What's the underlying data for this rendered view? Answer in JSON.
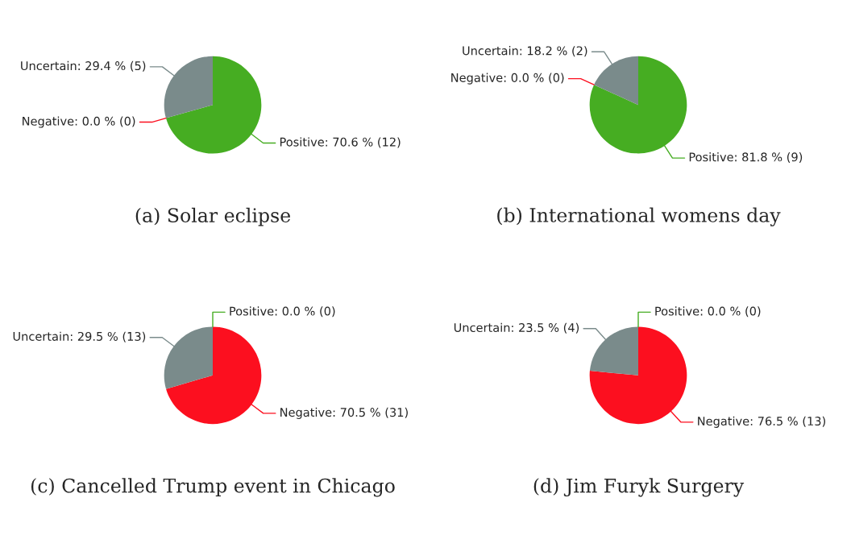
{
  "chart_data": [
    {
      "type": "pie",
      "title": "(a) Solar eclipse",
      "categories": [
        "Positive",
        "Negative",
        "Uncertain"
      ],
      "values": [
        70.6,
        0.0,
        29.4
      ],
      "value_labels": [
        "70.6 % (12)",
        "0.0 % (0)",
        "29.4 % (5)"
      ],
      "colors": [
        "#46ad22",
        "#fc0f1f",
        "#7a8b8b"
      ]
    },
    {
      "type": "pie",
      "title": "(b) International womens day",
      "categories": [
        "Positive",
        "Negative",
        "Uncertain"
      ],
      "values": [
        81.8,
        0.0,
        18.2
      ],
      "value_labels": [
        "81.8 % (9)",
        "0.0 % (0)",
        "18.2 % (2)"
      ],
      "colors": [
        "#46ad22",
        "#fc0f1f",
        "#7a8b8b"
      ]
    },
    {
      "type": "pie",
      "title": "(c) Cancelled Trump event in Chicago",
      "categories": [
        "Positive",
        "Negative",
        "Uncertain"
      ],
      "values": [
        0.0,
        70.5,
        29.5
      ],
      "value_labels": [
        "0.0 % (0)",
        "70.5 % (31)",
        "29.5 % (13)"
      ],
      "colors": [
        "#46ad22",
        "#fc0f1f",
        "#7a8b8b"
      ]
    },
    {
      "type": "pie",
      "title": "(d) Jim Furyk Surgery",
      "categories": [
        "Positive",
        "Negative",
        "Uncertain"
      ],
      "values": [
        0.0,
        76.5,
        23.5
      ],
      "value_labels": [
        "0.0 % (0)",
        "76.5 % (13)",
        "23.5 % (4)"
      ],
      "colors": [
        "#46ad22",
        "#fc0f1f",
        "#7a8b8b"
      ]
    }
  ]
}
